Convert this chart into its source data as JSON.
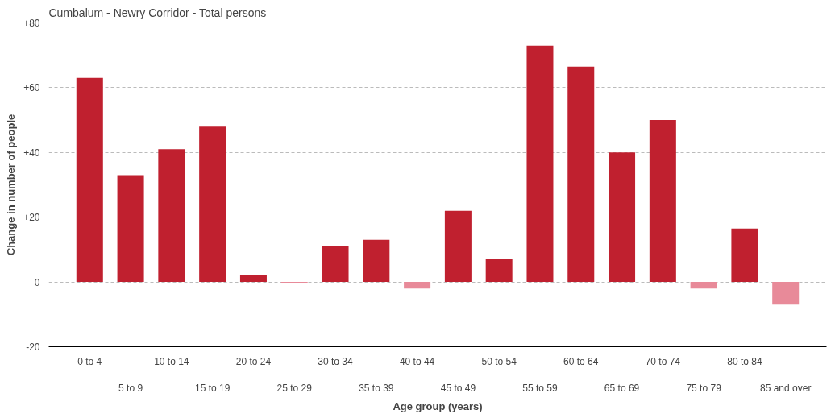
{
  "chart_data": {
    "type": "bar",
    "title": "Cumbalum - Newry Corridor - Total persons",
    "xlabel": "Age group (years)",
    "ylabel": "Change in number of people",
    "categories": [
      "0 to 4",
      "5 to 9",
      "10 to 14",
      "15 to 19",
      "20 to 24",
      "25 to 29",
      "30 to 34",
      "35 to 39",
      "40 to 44",
      "45 to 49",
      "50 to 54",
      "55 to 59",
      "60 to 64",
      "65 to 69",
      "70 to 74",
      "75 to 79",
      "80 to 84",
      "85 and over"
    ],
    "values": [
      63,
      33,
      41,
      48,
      2,
      -0.3,
      11,
      13,
      -2,
      22,
      7,
      73,
      66.5,
      40,
      50,
      -2,
      16.5,
      -7
    ],
    "colors": [
      "#c0202f",
      "#c0202f",
      "#c0202f",
      "#c0202f",
      "#c0202f",
      "#e88a99",
      "#c0202f",
      "#c0202f",
      "#e88a99",
      "#c0202f",
      "#c0202f",
      "#c0202f",
      "#c0202f",
      "#c0202f",
      "#c0202f",
      "#e88a99",
      "#c0202f",
      "#e88a99"
    ],
    "ylim": [
      -20,
      80
    ],
    "yticks": [
      {
        "value": -20,
        "label": "-20"
      },
      {
        "value": 0,
        "label": "0"
      },
      {
        "value": 20,
        "label": "+20"
      },
      {
        "value": 40,
        "label": "+40"
      },
      {
        "value": 60,
        "label": "+60"
      },
      {
        "value": 80,
        "label": "+80"
      }
    ],
    "grid": "y"
  }
}
